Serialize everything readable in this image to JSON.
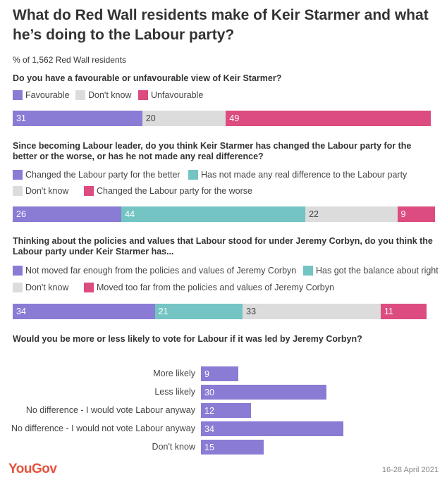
{
  "title": "What do Red Wall residents make of Keir Starmer and what he’s doing to the Labour party?",
  "subtitle": "% of 1,562 Red Wall residents",
  "colors": {
    "purple": "#8a7bd4",
    "grey": "#dcdcdc",
    "pink": "#dc4c80",
    "teal": "#73c4c3"
  },
  "chart_data": [
    {
      "type": "bar",
      "stacked": true,
      "orientation": "horizontal",
      "title": "Do you have a favourable or unfavourable view of Keir Starmer?",
      "series": [
        {
          "name": "Favourable",
          "value": 31,
          "color": "#8a7bd4"
        },
        {
          "name": "Don't know",
          "value": 20,
          "color": "#dcdcdc"
        },
        {
          "name": "Unfavourable",
          "value": 49,
          "color": "#dc4c80"
        }
      ]
    },
    {
      "type": "bar",
      "stacked": true,
      "orientation": "horizontal",
      "title": "Since becoming Labour leader, do you think Keir Starmer has changed the Labour party for the better or the worse, or has he not made any real difference?",
      "series": [
        {
          "name": "Changed the Labour party for the better",
          "value": 26,
          "color": "#8a7bd4"
        },
        {
          "name": "Has not made any real difference to the Labour party",
          "value": 44,
          "color": "#73c4c3"
        },
        {
          "name": "Don't know",
          "value": 22,
          "color": "#dcdcdc"
        },
        {
          "name": "Changed the Labour party for the worse",
          "value": 9,
          "color": "#dc4c80"
        }
      ]
    },
    {
      "type": "bar",
      "stacked": true,
      "orientation": "horizontal",
      "title": "Thinking about the policies and values that Labour stood for under Jeremy Corbyn, do you think the Labour party under Keir Starmer has...",
      "series": [
        {
          "name": "Not moved far enough from the policies and values of Jeremy Corbyn",
          "value": 34,
          "color": "#8a7bd4"
        },
        {
          "name": "Has got the balance about right",
          "value": 21,
          "color": "#73c4c3"
        },
        {
          "name": "Don't know",
          "value": 33,
          "color": "#dcdcdc"
        },
        {
          "name": "Moved too far from the policies and values of Jeremy Corbyn",
          "value": 11,
          "color": "#dc4c80"
        }
      ]
    },
    {
      "type": "bar",
      "orientation": "horizontal",
      "title": "Would you be more or less likely to vote for Labour if it was led by Jeremy Corbyn?",
      "categories": [
        "More likely",
        "Less likely",
        "No difference - I would vote Labour anyway",
        "No difference - I would not vote Labour anyway",
        "Don't know"
      ],
      "values": [
        9,
        30,
        12,
        34,
        15
      ]
    }
  ],
  "footer": {
    "logo": "YouGov",
    "date": "16-28 April 2021"
  }
}
